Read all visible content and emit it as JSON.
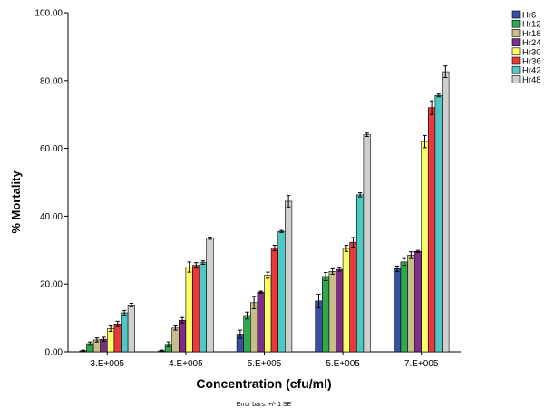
{
  "chart_data": {
    "type": "bar",
    "title": "",
    "xlabel": "Concentration (cfu/ml)",
    "ylabel": "% Mortality",
    "footnote": "Error bars: +/- 1 SE",
    "ylim": [
      0,
      100
    ],
    "yticks": [
      "0.00",
      "20.00",
      "40.00",
      "60.00",
      "80.00",
      "100.00"
    ],
    "grid": false,
    "legend_position": "top-right",
    "categories": [
      "3.E+005",
      "4.E+005",
      "5.E+005",
      "5.E+005",
      "7.E+005"
    ],
    "series": [
      {
        "name": "Hr6",
        "color": "#3b4fa0",
        "values": [
          0.3,
          0.3,
          5.2,
          15.0,
          24.5
        ],
        "errors": [
          0.2,
          0.2,
          1.2,
          2.0,
          0.8
        ]
      },
      {
        "name": "Hr12",
        "color": "#2fa84f",
        "values": [
          2.4,
          2.2,
          10.7,
          22.2,
          26.5
        ],
        "errors": [
          0.5,
          0.7,
          1.0,
          1.2,
          1.0
        ]
      },
      {
        "name": "Hr18",
        "color": "#c8be8a",
        "values": [
          3.5,
          7.0,
          14.5,
          23.7,
          28.5
        ],
        "errors": [
          0.6,
          0.6,
          1.8,
          0.8,
          1.0
        ]
      },
      {
        "name": "Hr24",
        "color": "#7c2f86",
        "values": [
          3.7,
          9.3,
          17.6,
          24.3,
          29.6
        ],
        "errors": [
          0.6,
          0.8,
          0.3,
          0.5,
          0.3
        ]
      },
      {
        "name": "Hr30",
        "color": "#fdfc6a",
        "values": [
          6.8,
          25.0,
          22.6,
          30.5,
          62.0
        ],
        "errors": [
          0.8,
          1.5,
          0.9,
          0.9,
          1.8
        ]
      },
      {
        "name": "Hr36",
        "color": "#e8393c",
        "values": [
          8.2,
          25.5,
          30.6,
          32.3,
          72.0
        ],
        "errors": [
          0.8,
          0.8,
          0.8,
          1.4,
          2.0
        ]
      },
      {
        "name": "Hr42",
        "color": "#4fc8c4",
        "values": [
          11.5,
          26.3,
          35.5,
          46.3,
          75.6
        ],
        "errors": [
          0.7,
          0.5,
          0.3,
          0.6,
          0.4
        ]
      },
      {
        "name": "Hr48",
        "color": "#cfcfcf",
        "values": [
          13.8,
          33.5,
          44.4,
          64.0,
          82.6
        ],
        "errors": [
          0.5,
          0.3,
          1.7,
          0.5,
          1.7
        ]
      }
    ]
  }
}
